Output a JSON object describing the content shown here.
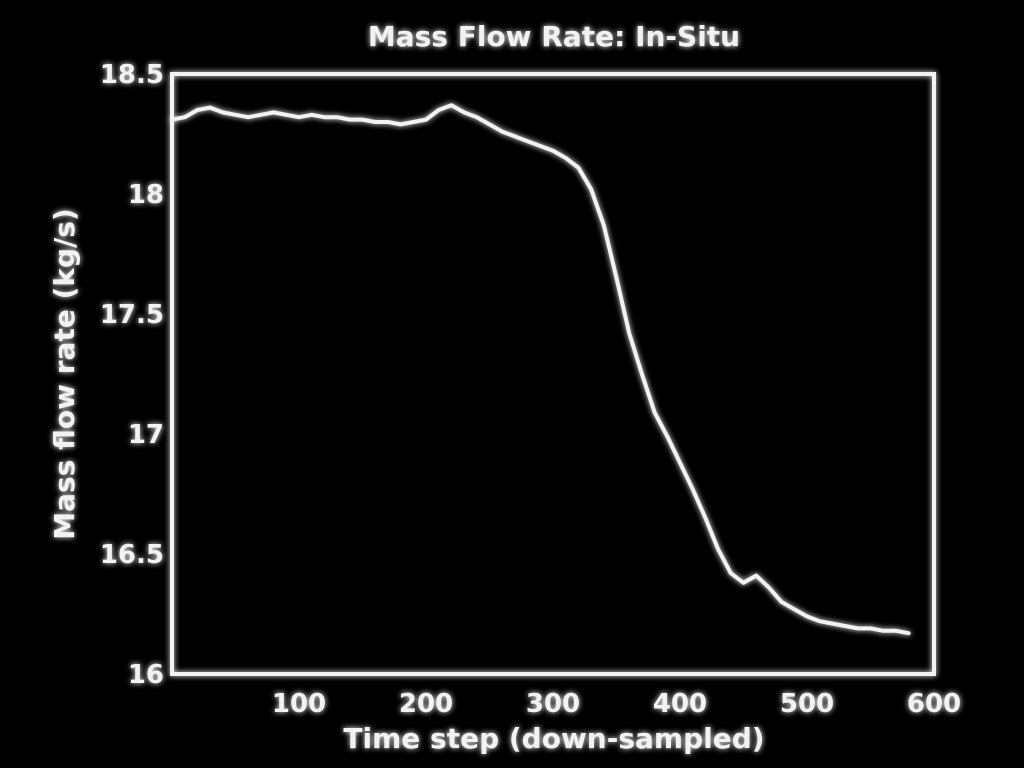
{
  "chart_data": {
    "type": "line",
    "title": "Mass Flow Rate: In-Situ",
    "xlabel": "Time step (down-sampled)",
    "ylabel": "Mass flow rate (kg/s)",
    "xlim": [
      0,
      600
    ],
    "ylim": [
      16,
      18.5
    ],
    "xticks": [
      100,
      200,
      300,
      400,
      500,
      600
    ],
    "yticks": [
      16,
      16.5,
      17,
      17.5,
      18,
      18.5
    ],
    "xtick_labels": [
      "100",
      "200",
      "300",
      "400",
      "500",
      "600"
    ],
    "ytick_labels": [
      "16",
      "16.5",
      "17",
      "17.5",
      "18",
      "18.5"
    ],
    "grid": false,
    "colors": {
      "background": "#000000",
      "foreground": "#f2f2f2"
    },
    "series": [
      {
        "x": [
          0,
          10,
          20,
          30,
          40,
          50,
          60,
          70,
          80,
          90,
          100,
          110,
          120,
          130,
          140,
          150,
          160,
          170,
          180,
          190,
          200,
          210,
          220,
          230,
          240,
          250,
          260,
          270,
          280,
          290,
          300,
          310,
          320,
          330,
          340,
          350,
          360,
          370,
          380,
          390,
          400,
          410,
          420,
          430,
          440,
          450,
          460,
          470,
          480,
          490,
          500,
          510,
          520,
          530,
          540,
          550,
          560,
          570,
          580
        ],
        "values": [
          18.31,
          18.32,
          18.35,
          18.36,
          18.34,
          18.33,
          18.32,
          18.33,
          18.34,
          18.33,
          18.32,
          18.33,
          18.32,
          18.32,
          18.31,
          18.31,
          18.3,
          18.3,
          18.29,
          18.3,
          18.31,
          18.35,
          18.37,
          18.34,
          18.32,
          18.29,
          18.26,
          18.24,
          18.22,
          18.2,
          18.18,
          18.15,
          18.11,
          18.02,
          17.87,
          17.65,
          17.42,
          17.25,
          17.09,
          16.99,
          16.88,
          16.77,
          16.65,
          16.52,
          16.42,
          16.38,
          16.41,
          16.36,
          16.3,
          16.27,
          16.24,
          16.22,
          16.21,
          16.2,
          16.19,
          16.19,
          16.18,
          16.18,
          16.17
        ]
      }
    ]
  }
}
